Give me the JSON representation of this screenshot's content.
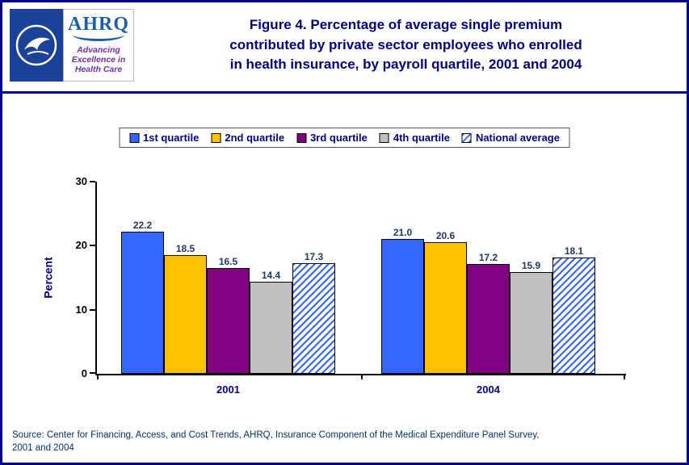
{
  "header": {
    "title": "Figure 4.  Percentage of average single premium\ncontributed by private sector employees who enrolled\nin health insurance, by payroll quartile, 2001 and 2004",
    "logos": {
      "ahrq_acronym": "AHRQ",
      "ahrq_tagline": "Advancing Excellence in Health Care"
    }
  },
  "chart_data": {
    "type": "bar",
    "categories": [
      "2001",
      "2004"
    ],
    "series": [
      {
        "name": "1st quartile",
        "values": [
          22.2,
          21.0
        ],
        "color": "#3366FF",
        "pattern": "solid"
      },
      {
        "name": "2nd quartile",
        "values": [
          18.5,
          20.6
        ],
        "color": "#FFC000",
        "pattern": "solid"
      },
      {
        "name": "3rd quartile",
        "values": [
          16.5,
          17.2
        ],
        "color": "#800080",
        "pattern": "solid"
      },
      {
        "name": "4th quartile",
        "values": [
          14.4,
          15.9
        ],
        "color": "#C0C0C0",
        "pattern": "solid"
      },
      {
        "name": "National average",
        "values": [
          17.3,
          18.1
        ],
        "color": "#3366FF",
        "pattern": "hatch"
      }
    ],
    "title": "Percentage of average single premium contributed by private sector employees who enrolled in health insurance, by payroll quartile, 2001 and 2004",
    "xlabel": "",
    "ylabel": "Percent",
    "ylim": [
      0,
      30
    ],
    "yticks": [
      0,
      10,
      20,
      30
    ],
    "grid": false,
    "legend_position": "top",
    "value_labels_decimals": 1
  },
  "source": {
    "text": "Source: Center for Financing, Access, and Cost Trends, AHRQ, Insurance Component of the Medical Expenditure Panel Survey,\n2001 and 2004"
  },
  "colors": {
    "title_navy": "#000080",
    "value_label": "#1F3864",
    "divider": "#00008B",
    "axis": "#000000"
  }
}
